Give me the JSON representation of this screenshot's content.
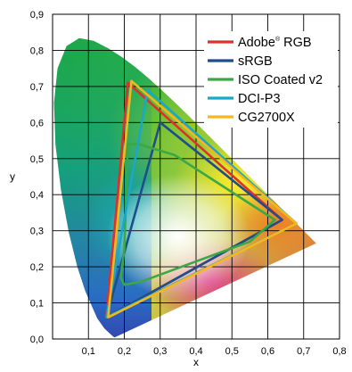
{
  "chart_data": {
    "type": "line",
    "title": "",
    "xlabel": "x",
    "ylabel": "y",
    "xlim": [
      0,
      0.8
    ],
    "ylim": [
      0,
      0.9
    ],
    "x_ticks": [
      "0,1",
      "0,2",
      "0,3",
      "0,4",
      "0,5",
      "0,6",
      "0,7",
      "0,8"
    ],
    "y_ticks": [
      "0,0",
      "0,1",
      "0,2",
      "0,3",
      "0,4",
      "0,5",
      "0,6",
      "0,7",
      "0,8",
      "0,9"
    ],
    "grid": true,
    "legend_position": "top-right",
    "series": [
      {
        "name": "Adobe® RGB",
        "name_main": "Adobe",
        "name_sup": "®",
        "name_rest": " RGB",
        "color": "#e0302b",
        "points": [
          [
            0.64,
            0.33
          ],
          [
            0.21,
            0.71
          ],
          [
            0.15,
            0.06
          ]
        ]
      },
      {
        "name": "sRGB",
        "color": "#1f4e8c",
        "points": [
          [
            0.64,
            0.33
          ],
          [
            0.3,
            0.6
          ],
          [
            0.15,
            0.06
          ]
        ]
      },
      {
        "name": "ISO Coated v2",
        "color": "#3aa845",
        "points": [
          [
            0.21,
            0.54
          ],
          [
            0.24,
            0.54
          ],
          [
            0.34,
            0.51
          ],
          [
            0.62,
            0.33
          ],
          [
            0.55,
            0.27
          ],
          [
            0.25,
            0.16
          ],
          [
            0.2,
            0.15
          ],
          [
            0.19,
            0.17
          ],
          [
            0.2,
            0.25
          ]
        ]
      },
      {
        "name": "DCI-P3",
        "color": "#1aa7c9",
        "points": [
          [
            0.68,
            0.32
          ],
          [
            0.265,
            0.69
          ],
          [
            0.15,
            0.06
          ]
        ]
      },
      {
        "name": "CG2700X",
        "color": "#f5b81c",
        "points": [
          [
            0.68,
            0.32
          ],
          [
            0.22,
            0.715
          ],
          [
            0.155,
            0.06
          ]
        ]
      }
    ]
  }
}
